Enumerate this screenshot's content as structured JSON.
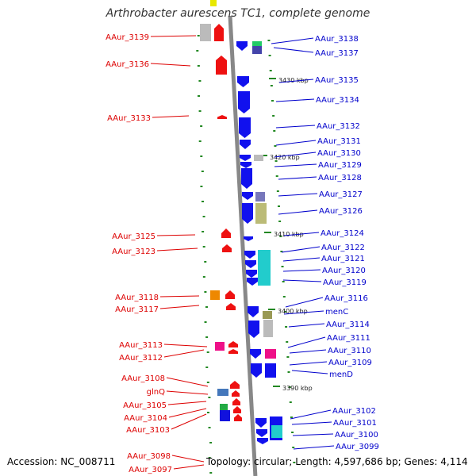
{
  "title": "Arthrobacter aurescens TC1, complete genome",
  "footer": {
    "accession": "Accession: NC_008711",
    "topology": "Topology: circular; Length: 4,597,686 bp; Genes: 4,114"
  },
  "colors": {
    "left_label": "#dd0000",
    "right_label": "#0000cc",
    "left_gene": "#ee1111",
    "right_gene": "#1111ee",
    "backbone": "#888888",
    "scale": "#228822"
  },
  "scale_ticks": [
    "3430 kbp",
    "3420 kbp",
    "3410 kbp",
    "3400 kbp",
    "3390 kbp"
  ],
  "left_labels": [
    "AAur_3139",
    "AAur_3136",
    "AAur_3133",
    "AAur_3125",
    "AAur_3123",
    "AAur_3118",
    "AAur_3117",
    "AAur_3113",
    "AAur_3112",
    "AAur_3108",
    "glnQ",
    "AAur_3105",
    "AAur_3104",
    "AAur_3103",
    "AAur_3098",
    "AAur_3097"
  ],
  "right_labels": [
    "AAur_3138",
    "AAur_3137",
    "AAur_3135",
    "AAur_3134",
    "AAur_3132",
    "AAur_3131",
    "AAur_3130",
    "AAur_3129",
    "AAur_3128",
    "AAur_3127",
    "AAur_3126",
    "AAur_3124",
    "AAur_3122",
    "AAur_3121",
    "AAur_3120",
    "AAur_3119",
    "AAur_3116",
    "menC",
    "AAur_3114",
    "AAur_3111",
    "AAur_3110",
    "AAur_3109",
    "menD",
    "AAur_3102",
    "AAur_3101",
    "AAur_3100",
    "AAur_3099"
  ]
}
